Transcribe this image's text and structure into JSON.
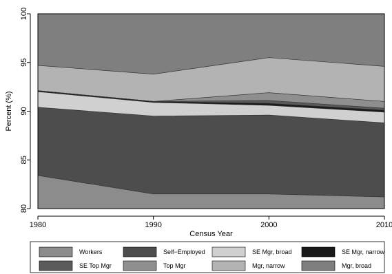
{
  "chart_data": {
    "type": "area",
    "stacked": true,
    "xlabel": "Census Year",
    "ylabel": "Percent (%)",
    "x": [
      1980,
      1990,
      2000,
      2010
    ],
    "xticks": [
      1980,
      1990,
      2000,
      2010
    ],
    "yticks": [
      80,
      85,
      90,
      95,
      100
    ],
    "xlim": [
      1980,
      2010
    ],
    "ylim": [
      80,
      100
    ],
    "grid": false,
    "legend_position": "bottom",
    "series": [
      {
        "name": "Workers",
        "color": "#8c8c8c",
        "cumulative_top": [
          83.4,
          81.5,
          81.5,
          81.2
        ]
      },
      {
        "name": "Self−Employed",
        "color": "#4d4d4d",
        "cumulative_top": [
          90.4,
          89.5,
          89.6,
          88.8
        ]
      },
      {
        "name": "SE Mgr, broad",
        "color": "#d0d0d0",
        "cumulative_top": [
          92.0,
          90.9,
          90.6,
          89.9
        ]
      },
      {
        "name": "SE Mgr, narrow",
        "color": "#1a1a1a",
        "cumulative_top": [
          92.1,
          91.0,
          90.8,
          90.1
        ]
      },
      {
        "name": "SE Top Mgr",
        "color": "#5a5a5a",
        "cumulative_top": [
          92.1,
          91.0,
          91.1,
          90.3
        ]
      },
      {
        "name": "Top Mgr",
        "color": "#8f8f8f",
        "cumulative_top": [
          92.1,
          91.0,
          91.9,
          91.0
        ]
      },
      {
        "name": "Mgr, narrow",
        "color": "#b3b3b3",
        "cumulative_top": [
          94.7,
          93.8,
          95.5,
          94.6
        ]
      },
      {
        "name": "Mgr, broad",
        "color": "#7f7f7f",
        "cumulative_top": [
          100,
          100,
          100,
          100
        ]
      }
    ]
  }
}
